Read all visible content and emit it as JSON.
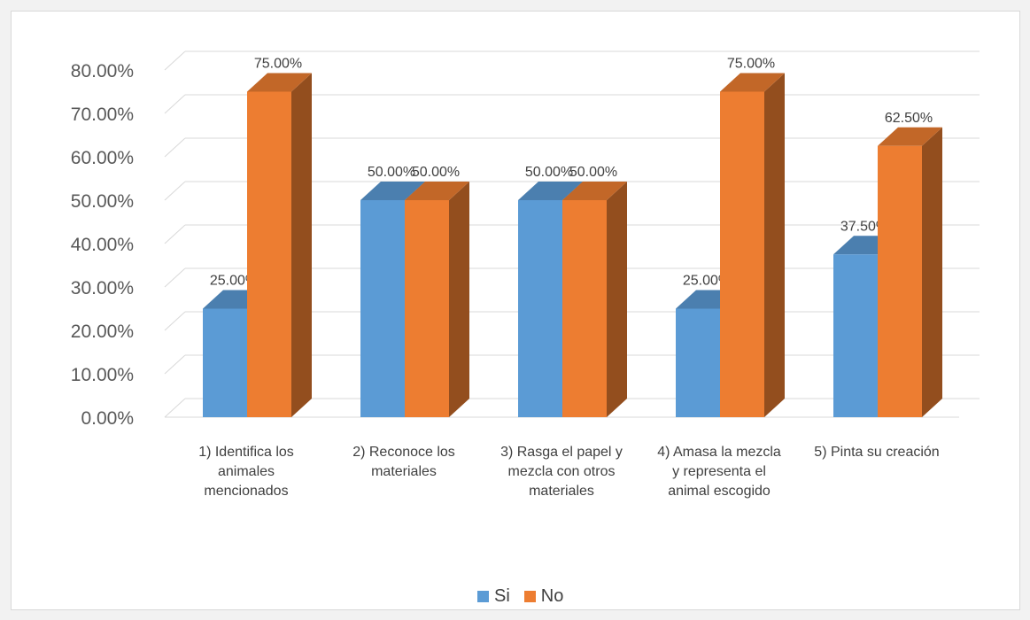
{
  "chart_data": {
    "type": "bar",
    "categories": [
      "1)  Identifica los animales mencionados",
      "2)    Reconoce los materiales",
      "3)    Rasga el papel y mezcla con otros materiales",
      "4)    Amasa la mezcla y representa el animal escogido",
      "5)  Pinta su creación"
    ],
    "series": [
      {
        "name": "Si",
        "color": "#5b9bd5",
        "values": [
          25.0,
          50.0,
          50.0,
          25.0,
          37.5
        ]
      },
      {
        "name": "No",
        "color": "#ed7d31",
        "values": [
          75.0,
          50.0,
          50.0,
          75.0,
          62.5
        ]
      }
    ],
    "data_labels": {
      "Si": [
        "25.00%",
        "50.00%",
        "50.00%",
        "25.00%",
        "37.50%"
      ],
      "No": [
        "75.00%",
        "50.00%",
        "50.00%",
        "75.00%",
        "62.50%"
      ]
    },
    "y_ticks": [
      "0.00%",
      "10.00%",
      "20.00%",
      "30.00%",
      "40.00%",
      "50.00%",
      "60.00%",
      "70.00%",
      "80.00%"
    ],
    "ylim": [
      0,
      80
    ],
    "grid": true,
    "style": "3d-clustered-column",
    "legend_position": "bottom",
    "title": "",
    "xlabel": "",
    "ylabel": ""
  }
}
